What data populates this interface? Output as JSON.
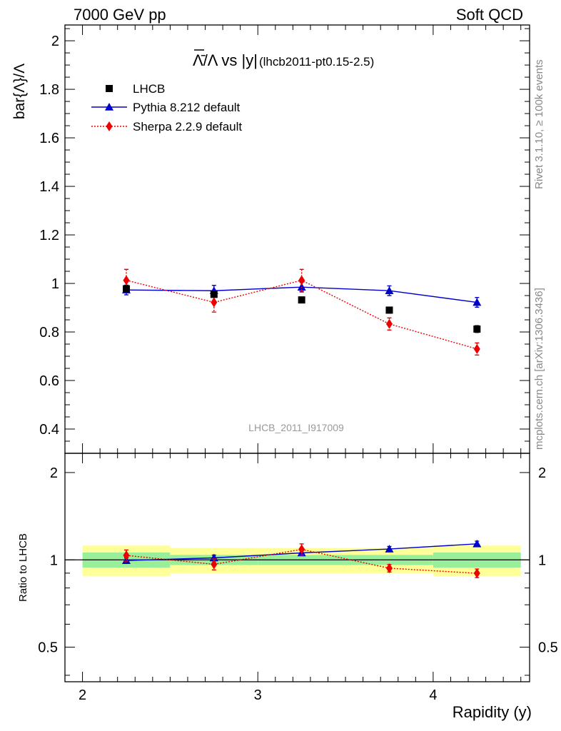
{
  "header": {
    "left": "7000 GeV pp",
    "right": "Soft QCD"
  },
  "side_text": {
    "upper": "Rivet 3.1.10, ≥ 100k events",
    "lower": "mcplots.cern.ch [arXiv:1306.3436]"
  },
  "chart_data": {
    "type": "scatter",
    "title": "Λ̄/Λ vs |y|",
    "title_suffix": "(lhcb2011-pt0.15-2.5)",
    "watermark": "LHCB_2011_I917009",
    "ylabel": "bar{Λ}/Λ",
    "ratio_ylabel": "Ratio to LHCB",
    "xlabel": "Rapidity (y)",
    "xlim": [
      1.9,
      4.55
    ],
    "ylim": [
      0.3,
      2.065
    ],
    "ratio_ylim": [
      0.38,
      2.33
    ],
    "x_ticks": [
      2,
      3,
      4
    ],
    "y_ticks": [
      0.4,
      0.6,
      0.8,
      1,
      1.2,
      1.4,
      1.6,
      1.8,
      2
    ],
    "y_tick_labels": [
      "0.4",
      "0.6",
      "0.8",
      "1",
      "1.2",
      "1.4",
      "1.6",
      "1.8",
      "2"
    ],
    "ratio_ticks": [
      0.5,
      1,
      2
    ],
    "ratio_tick_labels": [
      "0.5",
      "1",
      "2"
    ],
    "x_tick_labels": [
      "2",
      "3",
      "4"
    ],
    "x_bins": [
      [
        2.0,
        2.5
      ],
      [
        2.5,
        3.0
      ],
      [
        3.0,
        3.5
      ],
      [
        3.5,
        4.0
      ],
      [
        4.0,
        4.5
      ]
    ],
    "legend_position": "top-left",
    "series": [
      {
        "name": "LHCB",
        "color": "#000000",
        "marker": "square",
        "x": [
          2.25,
          2.75,
          3.25,
          3.75,
          4.25
        ],
        "y": [
          0.978,
          0.955,
          0.932,
          0.89,
          0.812
        ],
        "yerr": [
          0.012,
          0.012,
          0.012,
          0.012,
          0.014
        ],
        "band_inner": [
          0.06,
          0.04,
          0.04,
          0.04,
          0.06
        ],
        "band_outer": [
          0.12,
          0.1,
          0.1,
          0.1,
          0.12
        ],
        "line": "none"
      },
      {
        "name": "Pythia 8.212 default",
        "color": "#0000cc",
        "marker": "triangle",
        "x": [
          2.25,
          2.75,
          3.25,
          3.75,
          4.25
        ],
        "y": [
          0.973,
          0.97,
          0.985,
          0.97,
          0.922
        ],
        "yerr": [
          0.02,
          0.022,
          0.02,
          0.02,
          0.02
        ],
        "line": "solid"
      },
      {
        "name": "Sherpa 2.2.9 default",
        "color": "#ee0000",
        "marker": "diamond",
        "x": [
          2.25,
          2.75,
          3.25,
          3.75,
          4.25
        ],
        "y": [
          1.013,
          0.922,
          1.013,
          0.833,
          0.73
        ],
        "yerr": [
          0.045,
          0.04,
          0.045,
          0.025,
          0.025
        ],
        "line": "dotted"
      }
    ]
  }
}
